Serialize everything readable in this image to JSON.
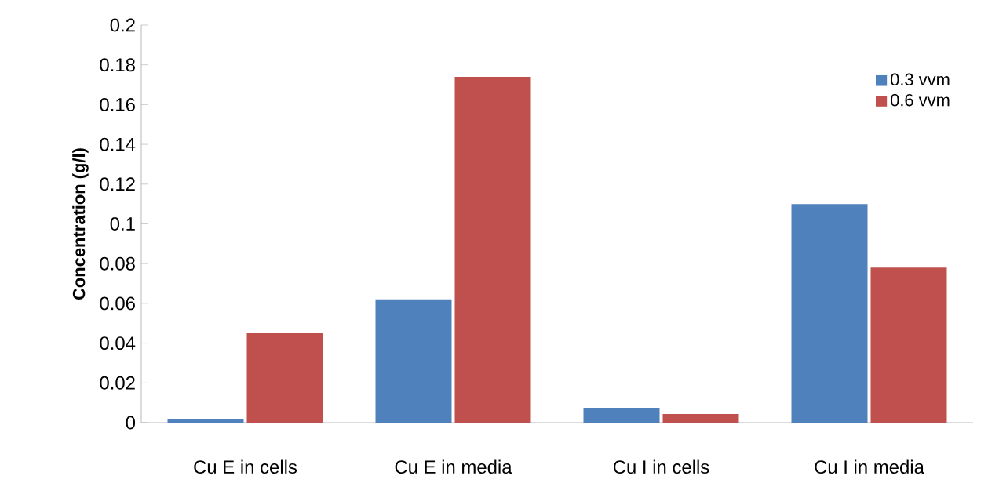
{
  "chart_data": {
    "type": "bar",
    "ylabel": "Concentration (g/l)",
    "categories": [
      "Cu E  in cells",
      "Cu E in media",
      "Cu I in cells",
      "Cu I in media"
    ],
    "series": [
      {
        "name": "0.3 vvm",
        "color": "#4f81bd",
        "values": [
          0.002,
          0.062,
          0.0075,
          0.11
        ]
      },
      {
        "name": "0.6 vvm",
        "color": "#c0504d",
        "values": [
          0.045,
          0.174,
          0.0043,
          0.078
        ]
      }
    ],
    "ylim": [
      0,
      0.2
    ],
    "yticks": [
      0,
      0.02,
      0.04,
      0.06,
      0.08,
      0.1,
      0.12,
      0.14,
      0.16,
      0.18,
      0.2
    ],
    "grid": false,
    "legend": "right"
  }
}
